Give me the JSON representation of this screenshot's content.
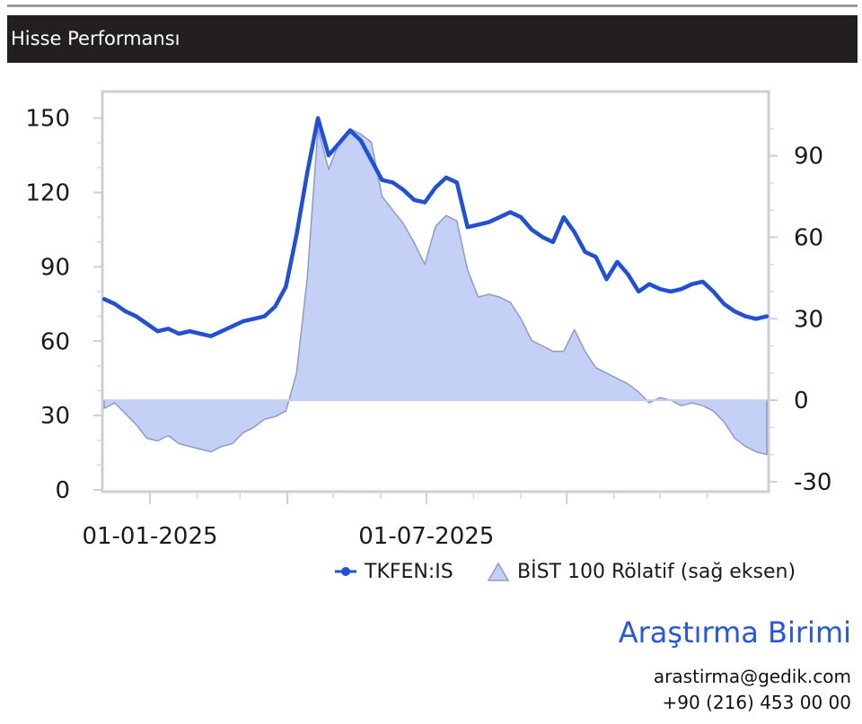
{
  "header": {
    "title": "Hisse Performansı"
  },
  "footer": {
    "org": "Araştırma Birimi",
    "email": "arastirma@gedik.com",
    "phone": "+90 (216) 453 00 00"
  },
  "colors": {
    "line": "#1f4fe0",
    "area": "#c5d0f6",
    "area_edge": "#8d9bc9",
    "org": "#2456e8"
  },
  "chart_data": {
    "type": "line",
    "x_ticks": [
      "01-01-2025",
      "01-07-2025"
    ],
    "y_left": {
      "ticks": [
        0,
        30,
        60,
        90,
        120,
        150
      ],
      "range": [
        0,
        160
      ]
    },
    "y_right": {
      "ticks": [
        -30,
        0,
        30,
        60,
        90
      ],
      "range": [
        -33,
        113
      ]
    },
    "legend": {
      "position": "bottom-right"
    },
    "series": [
      {
        "name": "TKFEN:IS",
        "kind": "line",
        "axis": "left",
        "x": [
          "2024-12-02",
          "2024-12-09",
          "2024-12-16",
          "2024-12-23",
          "2024-12-30",
          "2025-01-06",
          "2025-01-13",
          "2025-01-20",
          "2025-01-27",
          "2025-02-03",
          "2025-02-10",
          "2025-02-17",
          "2025-02-24",
          "2025-03-03",
          "2025-03-10",
          "2025-03-17",
          "2025-03-24",
          "2025-03-31",
          "2025-04-07",
          "2025-04-14",
          "2025-04-21",
          "2025-04-28",
          "2025-05-05",
          "2025-05-12",
          "2025-05-19",
          "2025-05-26",
          "2025-06-02",
          "2025-06-09",
          "2025-06-16",
          "2025-06-23",
          "2025-06-30",
          "2025-07-07",
          "2025-07-14",
          "2025-07-21",
          "2025-07-28",
          "2025-08-04",
          "2025-08-11",
          "2025-08-18",
          "2025-08-25",
          "2025-09-01",
          "2025-09-08",
          "2025-09-15",
          "2025-09-22",
          "2025-09-29",
          "2025-10-06",
          "2025-10-13",
          "2025-10-20",
          "2025-10-27",
          "2025-11-03",
          "2025-11-10",
          "2025-11-17",
          "2025-11-24",
          "2025-12-01",
          "2025-12-08",
          "2025-12-15",
          "2025-12-22",
          "2025-12-29",
          "2026-01-05",
          "2026-01-12",
          "2026-01-19",
          "2026-01-26",
          "2026-02-02",
          "2026-02-09"
        ],
        "values": [
          77,
          75,
          72,
          70,
          67,
          64,
          65,
          63,
          64,
          63,
          62,
          64,
          66,
          68,
          69,
          70,
          74,
          82,
          103,
          128,
          150,
          135,
          140,
          145,
          141,
          133,
          125,
          124,
          121,
          117,
          116,
          122,
          126,
          124,
          106,
          107,
          108,
          110,
          112,
          110,
          105,
          102,
          100,
          110,
          104,
          96,
          94,
          85,
          92,
          87,
          80,
          83,
          81,
          80,
          81,
          83,
          84,
          80,
          75,
          72,
          70,
          69,
          70
        ]
      },
      {
        "name": "BİST 100 Rölatif (sağ eksen)",
        "kind": "area",
        "axis": "right",
        "x": [
          "2024-12-02",
          "2024-12-09",
          "2024-12-16",
          "2024-12-23",
          "2024-12-30",
          "2025-01-06",
          "2025-01-13",
          "2025-01-20",
          "2025-01-27",
          "2025-02-03",
          "2025-02-10",
          "2025-02-17",
          "2025-02-24",
          "2025-03-03",
          "2025-03-10",
          "2025-03-17",
          "2025-03-24",
          "2025-03-31",
          "2025-04-07",
          "2025-04-14",
          "2025-04-21",
          "2025-04-28",
          "2025-05-05",
          "2025-05-12",
          "2025-05-19",
          "2025-05-26",
          "2025-06-02",
          "2025-06-09",
          "2025-06-16",
          "2025-06-23",
          "2025-06-30",
          "2025-07-07",
          "2025-07-14",
          "2025-07-21",
          "2025-07-28",
          "2025-08-04",
          "2025-08-11",
          "2025-08-18",
          "2025-08-25",
          "2025-09-01",
          "2025-09-08",
          "2025-09-15",
          "2025-09-22",
          "2025-09-29",
          "2025-10-06",
          "2025-10-13",
          "2025-10-20",
          "2025-10-27",
          "2025-11-03",
          "2025-11-10",
          "2025-11-17",
          "2025-11-24",
          "2025-12-01",
          "2025-12-08",
          "2025-12-15",
          "2025-12-22",
          "2025-12-29",
          "2026-01-05",
          "2026-01-12",
          "2026-01-19",
          "2026-01-26",
          "2026-02-02",
          "2026-02-09"
        ],
        "values": [
          -3,
          -1,
          -5,
          -9,
          -14,
          -15,
          -13,
          -16,
          -17,
          -18,
          -19,
          -17,
          -16,
          -12,
          -10,
          -7,
          -6,
          -4,
          10,
          45,
          100,
          85,
          95,
          100,
          98,
          95,
          75,
          70,
          65,
          58,
          50,
          64,
          68,
          66,
          48,
          38,
          39,
          38,
          36,
          30,
          22,
          20,
          18,
          18,
          26,
          18,
          12,
          10,
          8,
          6,
          3,
          -1,
          1,
          0,
          -2,
          -1,
          -2,
          -4,
          -8,
          -14,
          -17,
          -19,
          -20
        ]
      }
    ]
  }
}
